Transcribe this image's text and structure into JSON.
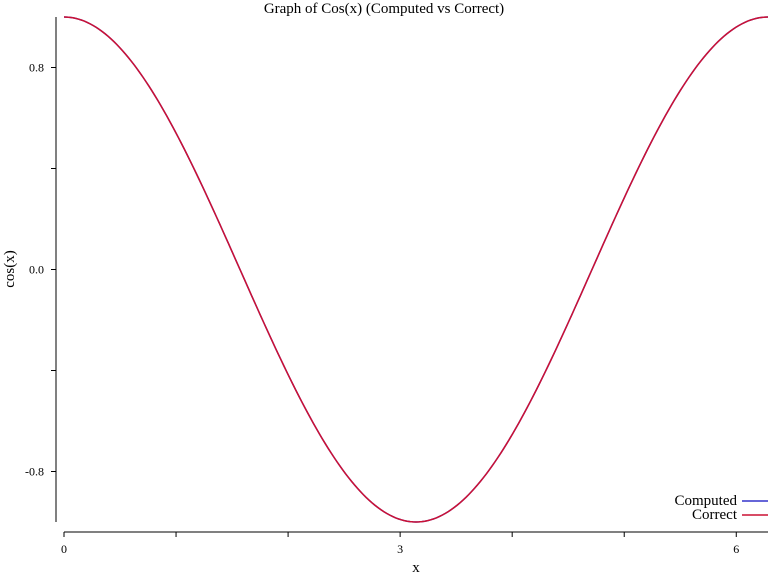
{
  "chart_data": {
    "type": "line",
    "title": "Graph of Cos(x) (Computed vs Correct)",
    "xlabel": "x",
    "ylabel": "cos(x)",
    "xlim": [
      0,
      6.2832
    ],
    "ylim": [
      -1,
      1
    ],
    "x_ticks": [
      0,
      3,
      6
    ],
    "x_tick_labels": [
      "0",
      "3",
      "6"
    ],
    "x_minor_ticks": [
      1,
      2,
      4,
      5
    ],
    "y_ticks": [
      0.8,
      0.0,
      -0.8
    ],
    "y_tick_labels": [
      "0.8",
      "0.0",
      "-0.8"
    ],
    "y_minor_ticks": [
      0.4,
      -0.4
    ],
    "grid": false,
    "legend_position": "bottom-right",
    "series": [
      {
        "name": "Computed",
        "color": "#3333cc",
        "function": "cos",
        "x": [
          0.0,
          0.3927,
          0.7854,
          1.1781,
          1.5708,
          1.9635,
          2.3562,
          2.7489,
          3.1416,
          3.5343,
          3.927,
          4.3197,
          4.7124,
          5.1051,
          5.4978,
          5.8905,
          6.2832
        ],
        "values": [
          1.0,
          0.9239,
          0.7071,
          0.3827,
          0.0,
          -0.3827,
          -0.7071,
          -0.9239,
          -1.0,
          -0.9239,
          -0.7071,
          -0.3827,
          0.0,
          0.3827,
          0.7071,
          0.9239,
          1.0
        ]
      },
      {
        "name": "Correct",
        "color": "#cc1133",
        "function": "cos",
        "x": [
          0.0,
          0.3927,
          0.7854,
          1.1781,
          1.5708,
          1.9635,
          2.3562,
          2.7489,
          3.1416,
          3.5343,
          3.927,
          4.3197,
          4.7124,
          5.1051,
          5.4978,
          5.8905,
          6.2832
        ],
        "values": [
          1.0,
          0.9239,
          0.7071,
          0.3827,
          0.0,
          -0.3827,
          -0.7071,
          -0.9239,
          -1.0,
          -0.9239,
          -0.7071,
          -0.3827,
          0.0,
          0.3827,
          0.7071,
          0.9239,
          1.0
        ]
      }
    ]
  }
}
